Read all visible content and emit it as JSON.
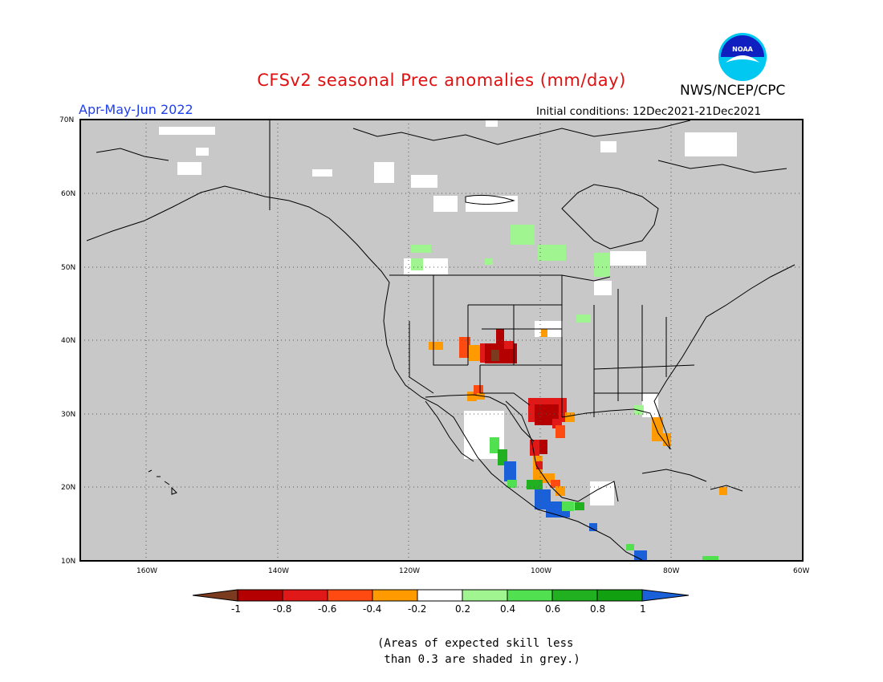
{
  "header": {
    "title": "CFSv2 seasonal Prec anomalies (mm/day)",
    "season": "Apr-May-Jun 2022",
    "initial_conditions": "Initial conditions: 12Dec2021-21Dec2021",
    "agency": "NWS/NCEP/CPC",
    "logo_text": "NOAA"
  },
  "map": {
    "lat_labels": [
      "70N",
      "60N",
      "50N",
      "40N",
      "30N",
      "20N",
      "10N"
    ],
    "lon_labels": [
      "160W",
      "140W",
      "120W",
      "100W",
      "80W",
      "60W"
    ],
    "background_color": "#c8c8c8"
  },
  "colorbar": {
    "labels": [
      "-1",
      "-0.8",
      "-0.6",
      "-0.4",
      "-0.2",
      "0.2",
      "0.4",
      "0.6",
      "0.8",
      "1"
    ],
    "colors": [
      "#7a3b1e",
      "#b40000",
      "#e01818",
      "#ff4a12",
      "#ff9a00",
      "#ffffff",
      "#a0f590",
      "#50e050",
      "#20b020",
      "#10a010",
      "#1a60d8"
    ]
  },
  "note": {
    "line1": "(Areas of expected skill less",
    "line2": " than 0.3 are shaded in grey.)"
  }
}
